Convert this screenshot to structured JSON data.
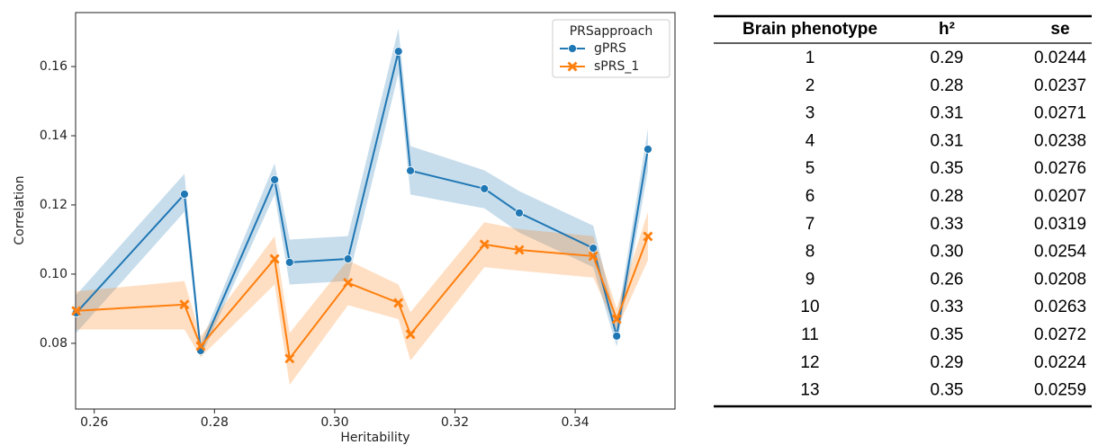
{
  "chart_data": {
    "type": "line",
    "x_label": "Heritability",
    "y_label": "Correlation",
    "legend_title": "PRSapproach",
    "legend_loc": "upper right",
    "x": [
      0.257,
      0.275,
      0.2777,
      0.29,
      0.2925,
      0.3022,
      0.3106,
      0.3126,
      0.3249,
      0.3307,
      0.343,
      0.3469,
      0.3521
    ],
    "series": [
      {
        "name": "gPRS",
        "color": "#1f77b4",
        "marker": "circle",
        "values": [
          0.0888,
          0.1231,
          0.0779,
          0.1273,
          0.1034,
          0.1044,
          0.1644,
          0.1299,
          0.1247,
          0.1177,
          0.1075,
          0.0821,
          0.1361
        ],
        "lower": [
          0.083,
          0.118,
          0.076,
          0.123,
          0.097,
          0.098,
          0.158,
          0.123,
          0.119,
          0.112,
          0.102,
          0.079,
          0.13
        ],
        "upper": [
          0.094,
          0.129,
          0.08,
          0.132,
          0.11,
          0.111,
          0.171,
          0.137,
          0.13,
          0.124,
          0.114,
          0.086,
          0.142
        ]
      },
      {
        "name": "sPRS_1",
        "color": "#ff7f0e",
        "marker": "x",
        "values": [
          0.0894,
          0.0912,
          0.0792,
          0.1044,
          0.0756,
          0.0975,
          0.0917,
          0.0826,
          0.1086,
          0.107,
          0.1052,
          0.087,
          0.1109
        ],
        "lower": [
          0.084,
          0.084,
          0.076,
          0.097,
          0.068,
          0.091,
          0.087,
          0.075,
          0.102,
          0.101,
          0.099,
          0.084,
          0.104
        ],
        "upper": [
          0.095,
          0.098,
          0.082,
          0.111,
          0.083,
          0.104,
          0.097,
          0.089,
          0.115,
          0.113,
          0.111,
          0.09,
          0.118
        ]
      }
    ],
    "xlim": [
      0.2569,
      0.3566
    ],
    "ylim": [
      0.061,
      0.1756
    ],
    "xticks": [
      {
        "value": 0.26,
        "label": "0.26"
      },
      {
        "value": 0.28,
        "label": "0.28"
      },
      {
        "value": 0.3,
        "label": "0.30"
      },
      {
        "value": 0.32,
        "label": "0.32"
      },
      {
        "value": 0.34,
        "label": "0.34"
      }
    ],
    "yticks": [
      {
        "value": 0.08,
        "label": "0.08"
      },
      {
        "value": 0.1,
        "label": "0.10"
      },
      {
        "value": 0.12,
        "label": "0.12"
      },
      {
        "value": 0.14,
        "label": "0.14"
      },
      {
        "value": 0.16,
        "label": "0.16"
      }
    ],
    "grid": false
  },
  "table": {
    "header": [
      "Brain phenotype",
      "h²",
      "se"
    ],
    "rows": [
      [
        "1",
        "0.29",
        "0.0244"
      ],
      [
        "2",
        "0.28",
        "0.0237"
      ],
      [
        "3",
        "0.31",
        "0.0271"
      ],
      [
        "4",
        "0.31",
        "0.0238"
      ],
      [
        "5",
        "0.35",
        "0.0276"
      ],
      [
        "6",
        "0.28",
        "0.0207"
      ],
      [
        "7",
        "0.33",
        "0.0319"
      ],
      [
        "8",
        "0.30",
        "0.0254"
      ],
      [
        "9",
        "0.26",
        "0.0208"
      ],
      [
        "10",
        "0.33",
        "0.0263"
      ],
      [
        "11",
        "0.35",
        "0.0272"
      ],
      [
        "12",
        "0.29",
        "0.0224"
      ],
      [
        "13",
        "0.35",
        "0.0259"
      ]
    ]
  }
}
